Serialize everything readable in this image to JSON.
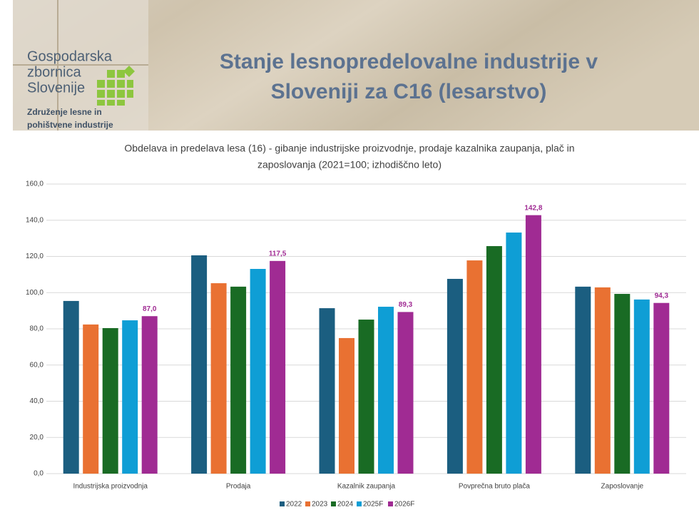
{
  "header": {
    "title": [
      "Stanje lesnopredelovalne industrije v",
      "Sloveniji za C16 (lesarstvo)"
    ],
    "logo": [
      "Gospodarska",
      "zbornica",
      "Slovenije"
    ],
    "association": [
      "Združenje lesne in",
      "pohištvene industrije"
    ]
  },
  "chart_data": {
    "type": "bar",
    "title": [
      "Obdelava in predelava lesa (16) - gibanje industrijske proizvodnje, prodaje kazalnika zaupanja, plač in",
      "zaposlovanja (2021=100; izhodiščno leto)"
    ],
    "categories": [
      "Industrijska proizvodnja",
      "Prodaja",
      "Kazalnik zaupanja",
      "Povprečna bruto plača",
      "Zaposlovanje"
    ],
    "series": [
      {
        "name": "2022",
        "color": "#1b5e80",
        "values": [
          95.4,
          120.6,
          91.4,
          107.6,
          103.3
        ]
      },
      {
        "name": "2023",
        "color": "#e97132",
        "values": [
          82.4,
          105.2,
          74.9,
          117.8,
          102.9
        ]
      },
      {
        "name": "2024",
        "color": "#196b24",
        "values": [
          80.4,
          103.3,
          85.1,
          125.7,
          99.3
        ]
      },
      {
        "name": "2025F",
        "color": "#0f9ed5",
        "values": [
          84.7,
          113.1,
          92.2,
          133.2,
          96.2
        ]
      },
      {
        "name": "2026F",
        "color": "#a02b93",
        "values": [
          87.0,
          117.5,
          89.3,
          142.8,
          94.3
        ],
        "value_labels": [
          "87,0",
          "117,5",
          "89,3",
          "142,8",
          "94,3"
        ]
      }
    ],
    "ylim": [
      0,
      160
    ],
    "yticks": [
      {
        "value": 0,
        "label": "0,0"
      },
      {
        "value": 20,
        "label": "20,0"
      },
      {
        "value": 40,
        "label": "40,0"
      },
      {
        "value": 60,
        "label": "60,0"
      },
      {
        "value": 80,
        "label": "80,0"
      },
      {
        "value": 100,
        "label": "100,0"
      },
      {
        "value": 120,
        "label": "120,0"
      },
      {
        "value": 140,
        "label": "140,0"
      },
      {
        "value": 160,
        "label": "160,0"
      }
    ],
    "grid": true,
    "legend": "bottom"
  }
}
